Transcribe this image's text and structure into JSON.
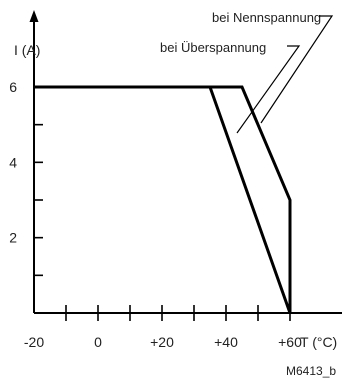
{
  "chart_data": {
    "type": "line",
    "title": "",
    "xlabel": "T (°C)",
    "ylabel": "I (A)",
    "xlim": [
      -20,
      60
    ],
    "ylim": [
      0,
      6
    ],
    "x_ticks": [
      -20,
      0,
      20,
      40,
      60
    ],
    "x_tick_labels": [
      "-20",
      "0",
      "+20",
      "+40",
      "+60"
    ],
    "y_ticks": [
      2,
      4,
      6
    ],
    "y_tick_labels": [
      "2",
      "4",
      "6"
    ],
    "series": [
      {
        "name": "bei Nennspannung",
        "x": [
          -20,
          45,
          60,
          60
        ],
        "y": [
          6,
          6,
          3,
          0
        ]
      },
      {
        "name": "bei Überspannung",
        "x": [
          -20,
          35,
          60
        ],
        "y": [
          6,
          6,
          0
        ]
      }
    ],
    "figure_id": "M6413_b"
  }
}
